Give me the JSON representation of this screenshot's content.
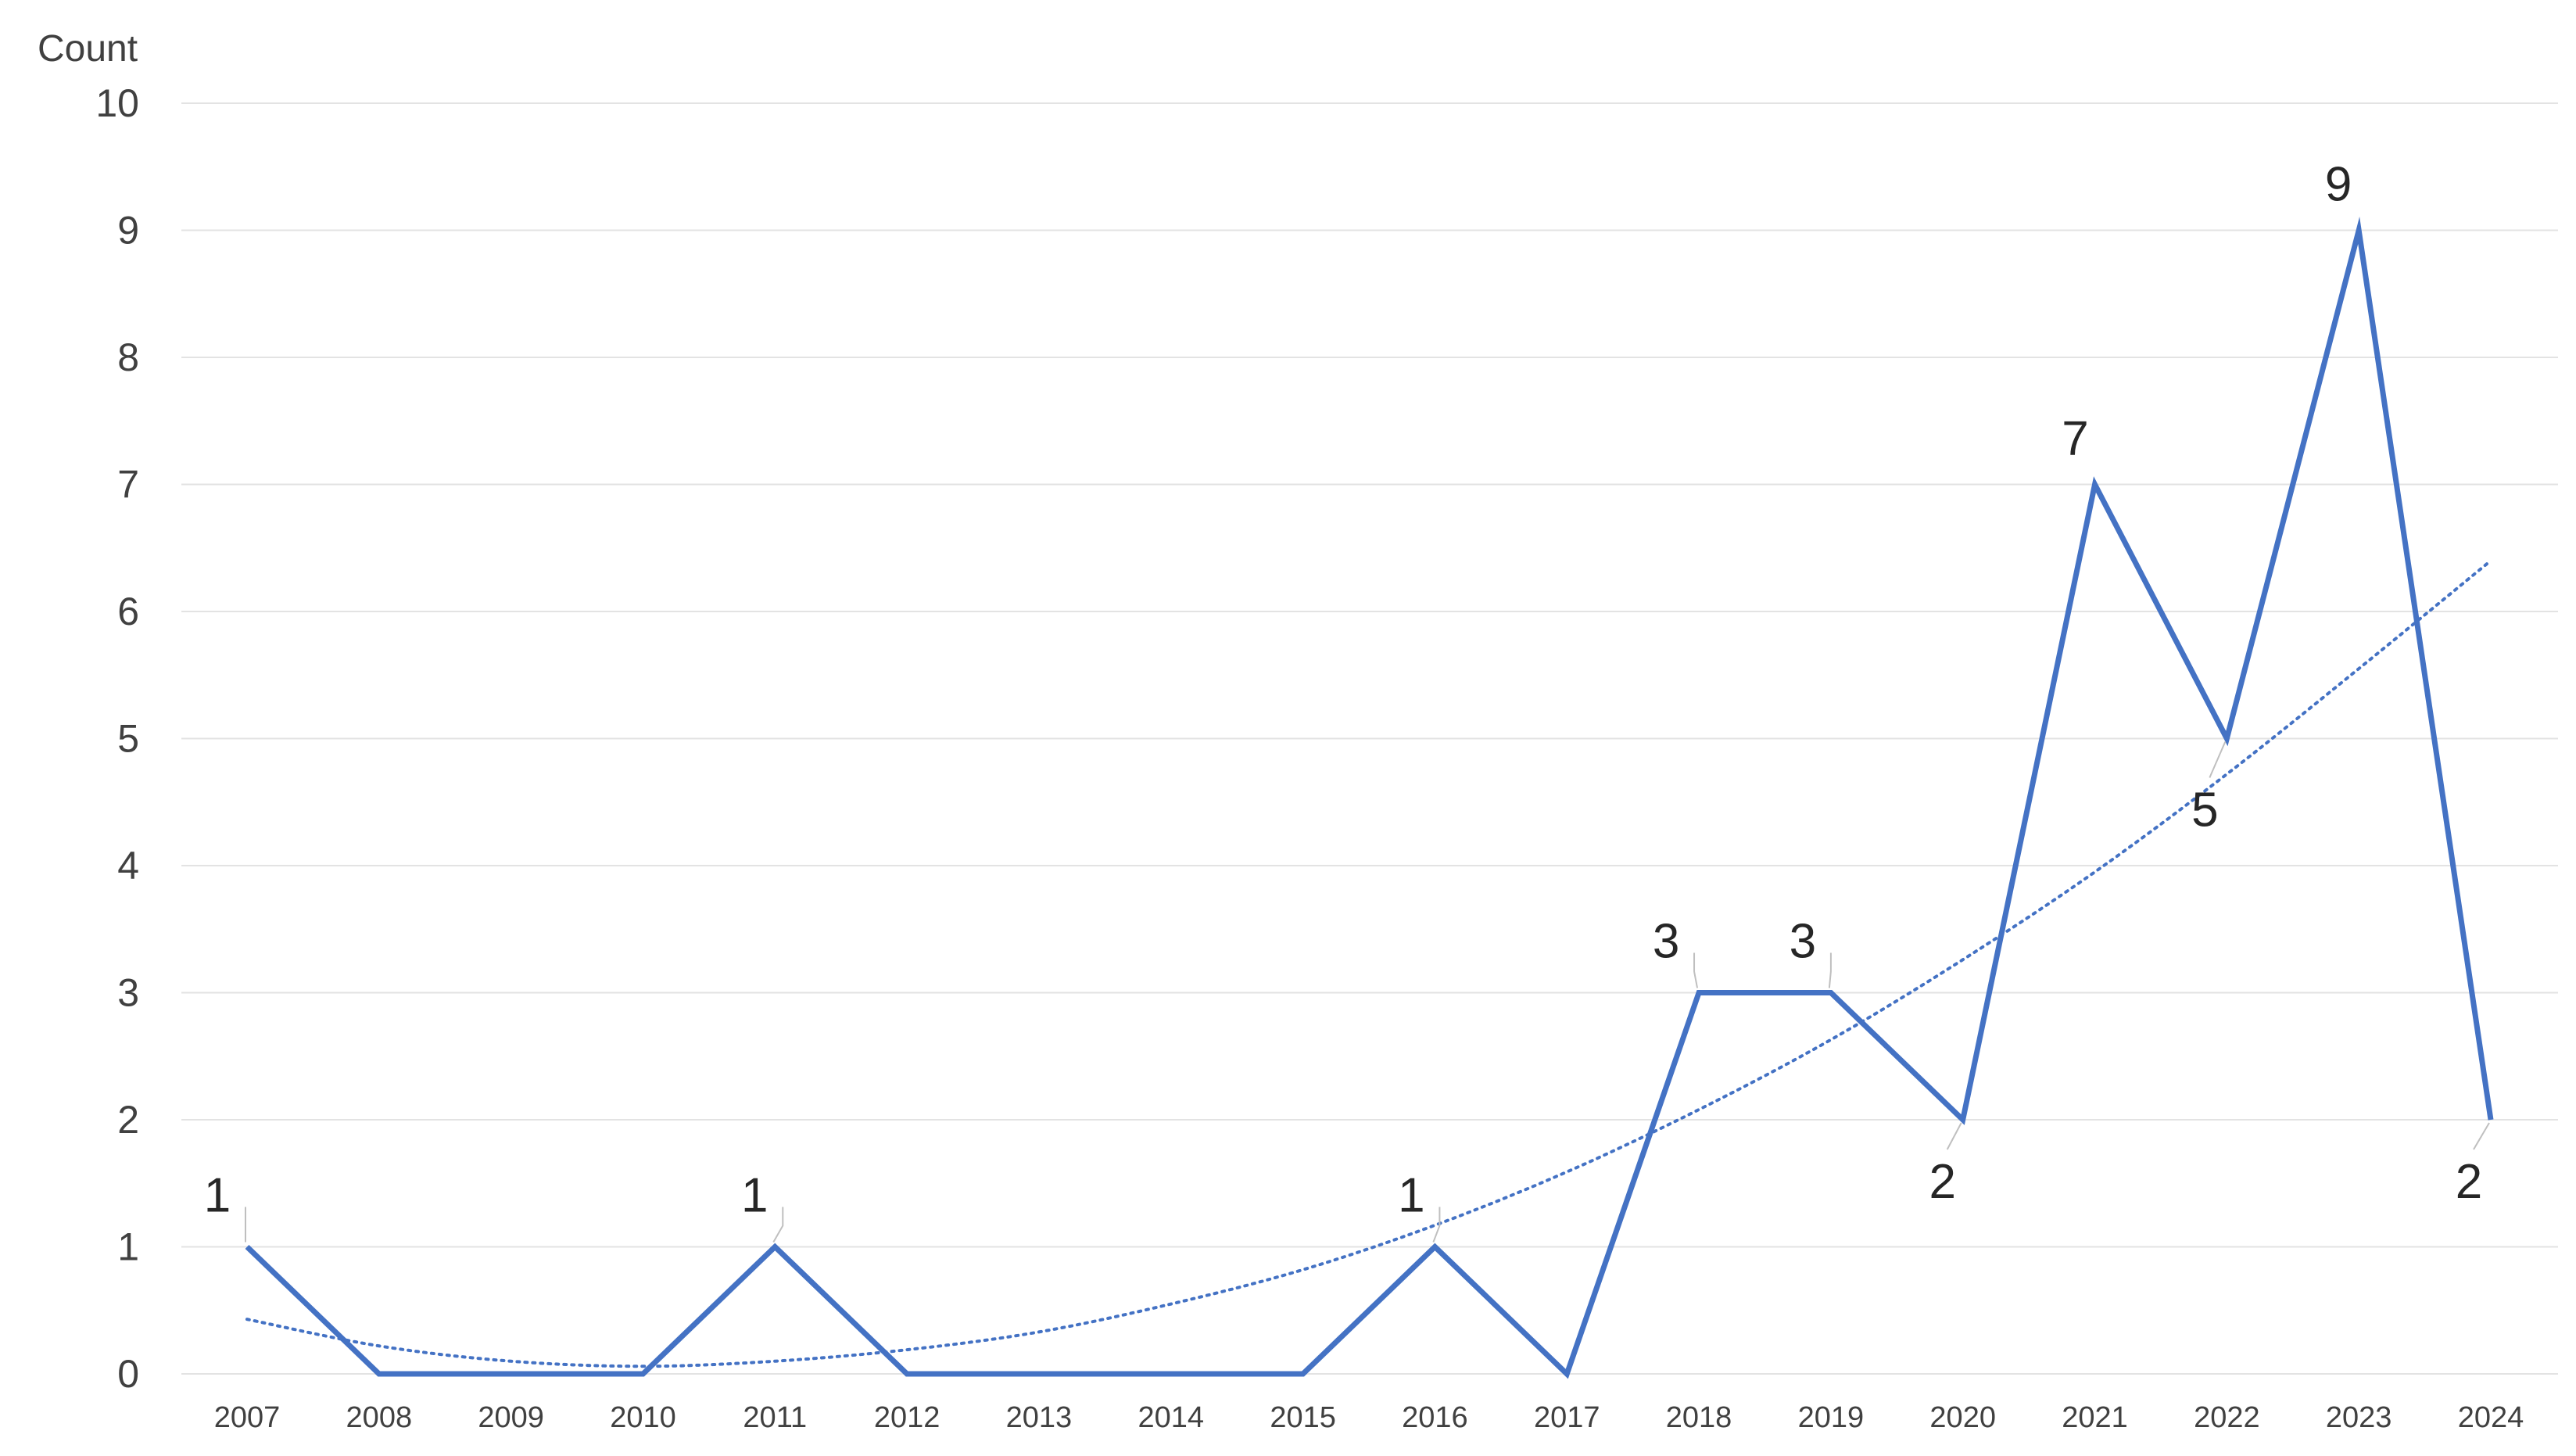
{
  "chart_data": {
    "type": "line",
    "title": "",
    "xlabel": "",
    "ylabel": "Count",
    "categories": [
      "2007",
      "2008",
      "2009",
      "2010",
      "2011",
      "2012",
      "2013",
      "2014",
      "2015",
      "2016",
      "2017",
      "2018",
      "2019",
      "2020",
      "2021",
      "2022",
      "2023",
      "2024"
    ],
    "series": [
      {
        "values": [
          1,
          0,
          0,
          0,
          1,
          0,
          0,
          0,
          0,
          1,
          0,
          3,
          3,
          2,
          7,
          5,
          9,
          2
        ],
        "color": "#4472C4",
        "style": "solid"
      }
    ],
    "trendline": {
      "type": "polynomial",
      "style": "dotted",
      "color": "#4472C4",
      "values": [
        0.43,
        0.22,
        0.1,
        0.06,
        0.1,
        0.19,
        0.33,
        0.55,
        0.82,
        1.17,
        1.59,
        2.08,
        2.63,
        3.26,
        3.95,
        4.72,
        5.55,
        6.4
      ]
    },
    "data_labels": [
      {
        "index": 0,
        "text": "1"
      },
      {
        "index": 4,
        "text": "1"
      },
      {
        "index": 9,
        "text": "1"
      },
      {
        "index": 11,
        "text": "3"
      },
      {
        "index": 12,
        "text": "3"
      },
      {
        "index": 13,
        "text": "2"
      },
      {
        "index": 14,
        "text": "7"
      },
      {
        "index": 15,
        "text": "5"
      },
      {
        "index": 16,
        "text": "9"
      },
      {
        "index": 17,
        "text": "2"
      }
    ],
    "y_ticks": [
      "0",
      "1",
      "2",
      "3",
      "4",
      "5",
      "6",
      "7",
      "8",
      "9",
      "10"
    ],
    "ylim": [
      0,
      10
    ],
    "grid": true,
    "legend": "none"
  }
}
